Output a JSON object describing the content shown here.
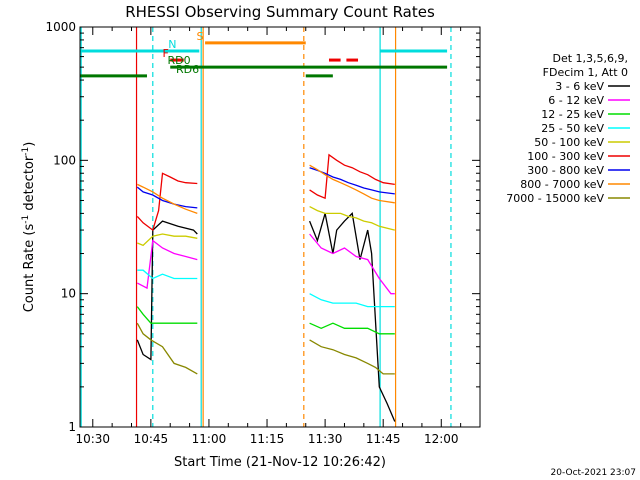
{
  "chart_data": {
    "type": "line",
    "title": "RHESSI Observing Summary Count Rates",
    "xlabel": "Start Time (21-Nov-12 10:26:42)",
    "ylabel_main": "Count Rate (s",
    "ylabel_sup1": "-1",
    "ylabel_mid": " detector",
    "ylabel_sup2": "-1",
    "ylabel_end": ")",
    "y_scale": "log",
    "ylim": [
      1,
      1000
    ],
    "xlim_minutes": [
      626.7,
      730.0
    ],
    "x_ticks": [
      {
        "label": "10:30",
        "t": 630
      },
      {
        "label": "10:45",
        "t": 645
      },
      {
        "label": "11:00",
        "t": 660
      },
      {
        "label": "11:15",
        "t": 675
      },
      {
        "label": "11:30",
        "t": 690
      },
      {
        "label": "11:45",
        "t": 705
      },
      {
        "label": "12:00",
        "t": 720
      }
    ],
    "y_ticks": [
      {
        "label": "1",
        "v": 1
      },
      {
        "label": "10",
        "v": 10
      },
      {
        "label": "100",
        "v": 100
      },
      {
        "label": "1000",
        "v": 1000
      }
    ],
    "legend_header": [
      "Det 1,3,5,6,9,",
      "FDecim 1, Att 0"
    ],
    "legend_placement": "right",
    "series": [
      {
        "name": "3 - 6 keV",
        "color": "#000000",
        "segments": [
          [
            [
              641.5,
              4.5
            ],
            [
              643,
              3.5
            ],
            [
              645,
              3.2
            ],
            [
              645.5,
              30
            ],
            [
              648,
              35
            ],
            [
              652,
              32
            ],
            [
              656,
              30
            ],
            [
              657,
              28
            ]
          ],
          [
            [
              686,
              35
            ],
            [
              688,
              25
            ],
            [
              690,
              40
            ],
            [
              692,
              20
            ],
            [
              693,
              30
            ],
            [
              695,
              35
            ],
            [
              697,
              40
            ],
            [
              699,
              18
            ],
            [
              701,
              30
            ],
            [
              702,
              20
            ],
            [
              704,
              2.0
            ],
            [
              706,
              1.5
            ],
            [
              708,
              1.1
            ]
          ]
        ]
      },
      {
        "name": "6 - 12 keV",
        "color": "#ff00ff",
        "segments": [
          [
            [
              641.5,
              12
            ],
            [
              644,
              11
            ],
            [
              645.5,
              25
            ],
            [
              648,
              22
            ],
            [
              651,
              20
            ],
            [
              654,
              19
            ],
            [
              657,
              18
            ]
          ],
          [
            [
              686,
              28
            ],
            [
              689,
              22
            ],
            [
              692,
              20
            ],
            [
              695,
              22
            ],
            [
              698,
              19
            ],
            [
              701,
              18
            ],
            [
              704,
              13
            ],
            [
              707,
              10
            ],
            [
              708,
              10
            ]
          ]
        ]
      },
      {
        "name": "12 - 25 keV",
        "color": "#00dd00",
        "segments": [
          [
            [
              641.5,
              8
            ],
            [
              643,
              7
            ],
            [
              645,
              6
            ],
            [
              648,
              6
            ],
            [
              651,
              6
            ],
            [
              654,
              6
            ],
            [
              657,
              6
            ]
          ],
          [
            [
              686,
              6
            ],
            [
              689,
              5.5
            ],
            [
              692,
              6
            ],
            [
              695,
              5.5
            ],
            [
              698,
              5.5
            ],
            [
              701,
              5.5
            ],
            [
              704,
              5
            ],
            [
              708,
              5
            ]
          ]
        ]
      },
      {
        "name": "25 - 50 keV",
        "color": "#00ffff",
        "segments": [
          [
            [
              641.5,
              15
            ],
            [
              643,
              15
            ],
            [
              645.5,
              13
            ],
            [
              648,
              14
            ],
            [
              651,
              13
            ],
            [
              654,
              13
            ],
            [
              657,
              13
            ]
          ],
          [
            [
              686,
              10
            ],
            [
              689,
              9
            ],
            [
              692,
              8.5
            ],
            [
              695,
              8.5
            ],
            [
              698,
              8.5
            ],
            [
              701,
              8
            ],
            [
              704,
              8
            ],
            [
              708,
              8
            ]
          ]
        ]
      },
      {
        "name": "50 - 100 keV",
        "color": "#cccc00",
        "segments": [
          [
            [
              641.5,
              24
            ],
            [
              643,
              23
            ],
            [
              645.5,
              27
            ],
            [
              648,
              28
            ],
            [
              651,
              27
            ],
            [
              654,
              27
            ],
            [
              657,
              26
            ]
          ],
          [
            [
              686,
              45
            ],
            [
              688,
              42
            ],
            [
              690,
              40
            ],
            [
              692,
              40
            ],
            [
              694,
              40
            ],
            [
              696,
              38
            ],
            [
              698,
              37
            ],
            [
              700,
              35
            ],
            [
              702,
              34
            ],
            [
              704,
              32
            ],
            [
              708,
              30
            ]
          ]
        ]
      },
      {
        "name": "100 - 300 keV",
        "color": "#ee0000",
        "segments": [
          [
            [
              641.5,
              38
            ],
            [
              643,
              34
            ],
            [
              645.5,
              30
            ],
            [
              647,
              42
            ],
            [
              648,
              80
            ],
            [
              650,
              75
            ],
            [
              652,
              70
            ],
            [
              654,
              68
            ],
            [
              657,
              67
            ]
          ],
          [
            [
              686,
              60
            ],
            [
              688,
              55
            ],
            [
              690,
              52
            ],
            [
              691,
              110
            ],
            [
              693,
              100
            ],
            [
              695,
              92
            ],
            [
              697,
              88
            ],
            [
              699,
              82
            ],
            [
              701,
              78
            ],
            [
              703,
              72
            ],
            [
              705,
              68
            ],
            [
              708,
              66
            ]
          ]
        ]
      },
      {
        "name": "300 - 800 keV",
        "color": "#0000ee",
        "segments": [
          [
            [
              641.5,
              63
            ],
            [
              643,
              58
            ],
            [
              645.5,
              55
            ],
            [
              648,
              50
            ],
            [
              651,
              47
            ],
            [
              654,
              45
            ],
            [
              657,
              44
            ]
          ],
          [
            [
              686,
              88
            ],
            [
              688,
              84
            ],
            [
              690,
              80
            ],
            [
              692,
              75
            ],
            [
              694,
              72
            ],
            [
              696,
              68
            ],
            [
              698,
              65
            ],
            [
              700,
              62
            ],
            [
              702,
              60
            ],
            [
              704,
              58
            ],
            [
              708,
              56
            ]
          ]
        ]
      },
      {
        "name": "800 - 7000 keV",
        "color": "#ff8800",
        "segments": [
          [
            [
              641.5,
              66
            ],
            [
              643,
              63
            ],
            [
              645.5,
              58
            ],
            [
              648,
              52
            ],
            [
              651,
              47
            ],
            [
              654,
              43
            ],
            [
              657,
              40
            ]
          ],
          [
            [
              686,
              92
            ],
            [
              688,
              85
            ],
            [
              690,
              78
            ],
            [
              692,
              72
            ],
            [
              694,
              68
            ],
            [
              696,
              64
            ],
            [
              698,
              60
            ],
            [
              700,
              56
            ],
            [
              702,
              52
            ],
            [
              704,
              50
            ],
            [
              708,
              48
            ]
          ]
        ]
      },
      {
        "name": "7000 - 15000 keV",
        "color": "#888800",
        "segments": [
          [
            [
              641.5,
              6
            ],
            [
              643,
              5
            ],
            [
              645,
              4.5
            ],
            [
              648,
              4
            ],
            [
              651,
              3
            ],
            [
              654,
              2.8
            ],
            [
              657,
              2.5
            ]
          ],
          [
            [
              686,
              4.5
            ],
            [
              689,
              4
            ],
            [
              692,
              3.8
            ],
            [
              695,
              3.5
            ],
            [
              698,
              3.3
            ],
            [
              701,
              3
            ],
            [
              703,
              2.8
            ],
            [
              705,
              2.5
            ],
            [
              708,
              2.5
            ]
          ]
        ]
      }
    ],
    "annotations": [
      {
        "label": "N",
        "color": "#00dddd",
        "t1": 626.7,
        "t2": 657.5,
        "level": 660,
        "text_t": 649.5
      },
      {
        "label": "N",
        "color": "#00dddd",
        "t1": 704.3,
        "t2": 721.5,
        "level": 660,
        "text_t": null
      },
      {
        "label": "S",
        "color": "#ff8800",
        "t1": 659.0,
        "t2": 685.0,
        "level": 760,
        "text_t": 656.8
      },
      {
        "label": "F",
        "color": "#ee0000",
        "t1": 650.0,
        "t2": 653.5,
        "level": 565,
        "text_t": 648.0
      },
      {
        "label": "",
        "color": "#ee0000",
        "t1": 691.0,
        "t2": 694.0,
        "level": 565,
        "text_t": null
      },
      {
        "label": "",
        "color": "#ee0000",
        "t1": 695.5,
        "t2": 698.5,
        "level": 565,
        "text_t": null
      },
      {
        "label": "RD0",
        "color": "#007700",
        "t1": 650.0,
        "t2": 721.5,
        "level": 500,
        "text_t": 649.3
      },
      {
        "label": "RD6",
        "color": "#007700",
        "t1": 626.7,
        "t2": 644.0,
        "level": 430,
        "text_t": 651.5
      },
      {
        "label": "",
        "color": "#007700",
        "t1": 685.0,
        "t2": 692.0,
        "level": 430,
        "text_t": null
      }
    ],
    "vlines": [
      {
        "t": 627.0,
        "color": "#00dddd",
        "dashed": false
      },
      {
        "t": 641.3,
        "color": "#ee0000",
        "dashed": false
      },
      {
        "t": 645.5,
        "color": "#00dddd",
        "dashed": true
      },
      {
        "t": 658.0,
        "color": "#00dddd",
        "dashed": false
      },
      {
        "t": 658.5,
        "color": "#ff8800",
        "dashed": false
      },
      {
        "t": 684.5,
        "color": "#ff8800",
        "dashed": true
      },
      {
        "t": 704.2,
        "color": "#00dddd",
        "dashed": false
      },
      {
        "t": 708.2,
        "color": "#ff8800",
        "dashed": false
      },
      {
        "t": 722.5,
        "color": "#00dddd",
        "dashed": true
      }
    ],
    "timestamp": "20-Oct-2021 23:07"
  }
}
